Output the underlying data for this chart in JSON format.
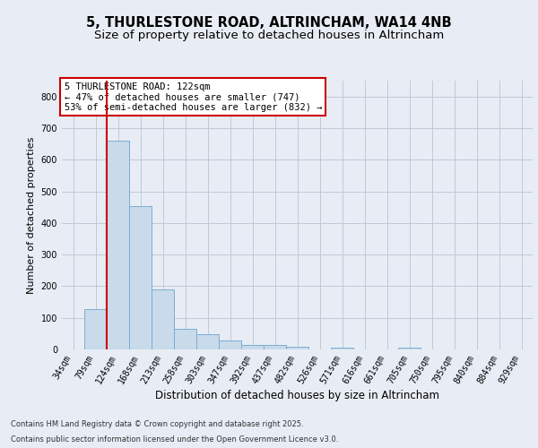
{
  "title1": "5, THURLESTONE ROAD, ALTRINCHAM, WA14 4NB",
  "title2": "Size of property relative to detached houses in Altrincham",
  "xlabel": "Distribution of detached houses by size in Altrincham",
  "ylabel": "Number of detached properties",
  "categories": [
    "34sqm",
    "79sqm",
    "124sqm",
    "168sqm",
    "213sqm",
    "258sqm",
    "303sqm",
    "347sqm",
    "392sqm",
    "437sqm",
    "482sqm",
    "526sqm",
    "571sqm",
    "616sqm",
    "661sqm",
    "705sqm",
    "750sqm",
    "795sqm",
    "840sqm",
    "884sqm",
    "929sqm"
  ],
  "values": [
    0,
    128,
    660,
    452,
    190,
    65,
    47,
    28,
    13,
    15,
    8,
    0,
    5,
    0,
    0,
    5,
    0,
    0,
    0,
    0,
    0
  ],
  "bar_color": "#c9daea",
  "bar_edge_color": "#7aadd4",
  "grid_color": "#c0c8d8",
  "background_color": "#e8edf5",
  "vline_x": 1.5,
  "vline_color": "#cc0000",
  "annotation_text": "5 THURLESTONE ROAD: 122sqm\n← 47% of detached houses are smaller (747)\n53% of semi-detached houses are larger (832) →",
  "annotation_box_color": "#ffffff",
  "annotation_border_color": "#cc0000",
  "footer_text1": "Contains HM Land Registry data © Crown copyright and database right 2025.",
  "footer_text2": "Contains public sector information licensed under the Open Government Licence v3.0.",
  "ylim": [
    0,
    850
  ],
  "yticks": [
    0,
    100,
    200,
    300,
    400,
    500,
    600,
    700,
    800
  ],
  "title1_fontsize": 10.5,
  "title2_fontsize": 9.5,
  "xlabel_fontsize": 8.5,
  "ylabel_fontsize": 8,
  "tick_fontsize": 7,
  "annotation_fontsize": 7.5,
  "footer_fontsize": 6
}
